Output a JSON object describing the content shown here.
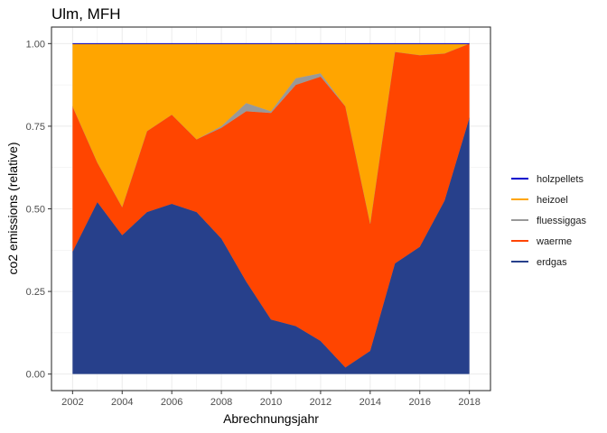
{
  "chart_data": {
    "type": "area",
    "title": "Ulm, MFH",
    "xlabel": "Abrechnungsjahr",
    "ylabel": "co2 emissions (relative)",
    "x": [
      2002,
      2003,
      2004,
      2005,
      2006,
      2007,
      2008,
      2009,
      2010,
      2011,
      2012,
      2013,
      2014,
      2015,
      2016,
      2017,
      2018
    ],
    "xlim": [
      2001.15,
      2018.85
    ],
    "ylim": [
      -0.05,
      1.05
    ],
    "xticks": [
      "2002",
      "2004",
      "2006",
      "2008",
      "2010",
      "2012",
      "2014",
      "2016",
      "2018"
    ],
    "yticks": [
      "0.00",
      "0.25",
      "0.50",
      "0.75",
      "1.00"
    ],
    "grid": true,
    "legend_position": "right",
    "series": [
      {
        "name": "erdgas",
        "color": "#27408B",
        "values": [
          0.37,
          0.52,
          0.42,
          0.49,
          0.515,
          0.49,
          0.41,
          0.28,
          0.165,
          0.145,
          0.1,
          0.02,
          0.07,
          0.335,
          0.385,
          0.525,
          0.775
        ]
      },
      {
        "name": "waerme",
        "color": "#FF4500",
        "values": [
          0.44,
          0.12,
          0.085,
          0.245,
          0.27,
          0.22,
          0.335,
          0.515,
          0.625,
          0.73,
          0.8,
          0.79,
          0.385,
          0.64,
          0.58,
          0.445,
          0.225
        ]
      },
      {
        "name": "fluessiggas",
        "color": "#999999",
        "values": [
          0,
          0,
          0,
          0,
          0,
          0,
          0.005,
          0.025,
          0.005,
          0.02,
          0.01,
          0,
          0,
          0,
          0,
          0,
          0
        ]
      },
      {
        "name": "heizoel",
        "color": "#FFA500",
        "values": [
          0.19,
          0.36,
          0.495,
          0.265,
          0.215,
          0.29,
          0.25,
          0.18,
          0.205,
          0.105,
          0.09,
          0.19,
          0.545,
          0.025,
          0.035,
          0.03,
          0.0
        ]
      },
      {
        "name": "holzpellets",
        "color": "#0000CD",
        "values": [
          0,
          0,
          0,
          0,
          0,
          0,
          0,
          0,
          0,
          0,
          0,
          0,
          0,
          0,
          0,
          0,
          0
        ]
      }
    ],
    "legend_order": [
      "holzpellets",
      "heizoel",
      "fluessiggas",
      "waerme",
      "erdgas"
    ]
  }
}
